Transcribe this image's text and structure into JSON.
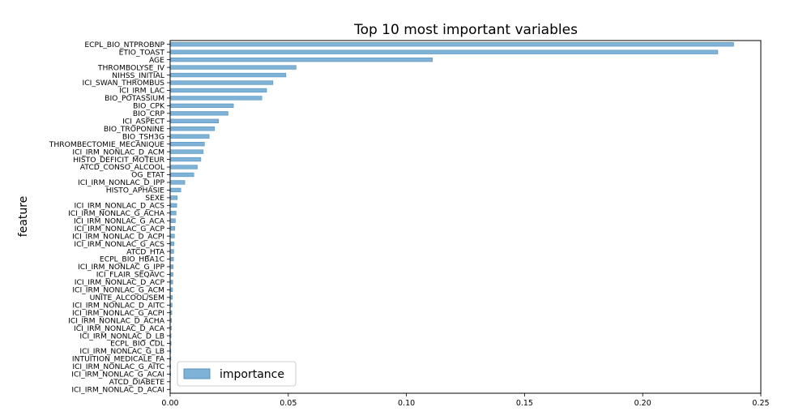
{
  "chart_data": {
    "type": "bar",
    "orientation": "horizontal",
    "title": "Top 10 most important variables",
    "xlabel": "",
    "ylabel": "feature",
    "xlim": [
      0,
      0.25
    ],
    "xticks": [
      "0.00",
      "0.05",
      "0.10",
      "0.15",
      "0.20",
      "0.25"
    ],
    "grid": false,
    "legend_position": "bottom-left",
    "bar_color": "#7eb2d6",
    "bar_edge_color": "#5a93be",
    "categories": [
      "ECPL_BIO_NTPROBNP",
      "ETIO_TOAST",
      "AGE",
      "THROMBOLYSE_IV",
      "NIHSS_INITIAL",
      "ICI_SWAN_THROMBUS",
      "ICI_IRM_LAC",
      "BIO_POTASSIUM",
      "BIO_CPK",
      "BIO_CRP",
      "ICI_ASPECT",
      "BIO_TROPONINE",
      "BIO_TSH3G",
      "THROMBECTOMIE_MECANIQUE",
      "ICI_IRM_NONLAC_D_ACM",
      "HISTO_DEFICIT_MOTEUR",
      "ATCD_CONSO_ALCOOL",
      "OG_ETAT",
      "ICI_IRM_NONLAC_D_IPP",
      "HISTO_APHASIE",
      "SEXE",
      "ICI_IRM_NONLAC_D_ACS",
      "ICI_IRM_NONLAC_G_ACHA",
      "ICI_IRM_NONLAC_G_ACA",
      "ICI_IRM_NONLAC_G_ACP",
      "ICI_IRM_NONLAC_D_ACPI",
      "ICI_IRM_NONLAC_G_ACS",
      "ATCD_HTA",
      "ECPL_BIO_HBA1C",
      "ICI_IRM_NONLAC_G_IPP",
      "ICI_FLAIR_SEQAVC",
      "ICI_IRM_NONLAC_D_ACP",
      "ICI_IRM_NONLAC_G_ACM",
      "UNITE_ALCOOL/SEM",
      "ICI_IRM_NONLAC_D_AITC",
      "ICI_IRM_NONLAC_G_ACPI",
      "ICI_IRM_NONLAC_D_ACHA",
      "ICI_IRM_NONLAC_D_ACA",
      "ICI_IRM_NONLAC_D_LB",
      "ECPL_BIO_CDL",
      "ICI_IRM_NONLAC_G_LB",
      "INTUITION_MEDICALE_FA",
      "ICI_IRM_NONLAC_G_AITC",
      "ICI_IRM_NONLAC_G_ACAI",
      "ATCD_DIABETE",
      "ICI_IRM_NONLAC_D_ACAI"
    ],
    "series": [
      {
        "name": "importance",
        "values": [
          0.2385,
          0.2318,
          0.111,
          0.0533,
          0.049,
          0.0435,
          0.0408,
          0.0388,
          0.0268,
          0.0245,
          0.0205,
          0.0188,
          0.0165,
          0.0145,
          0.014,
          0.013,
          0.0115,
          0.01,
          0.0062,
          0.0045,
          0.003,
          0.0028,
          0.0025,
          0.0022,
          0.002,
          0.0018,
          0.0016,
          0.0015,
          0.0014,
          0.0013,
          0.0012,
          0.0011,
          0.001,
          0.0009,
          0.0008,
          0.0007,
          0.0006,
          0.0005,
          0.0004,
          0.0004,
          0.0003,
          0.0003,
          0.0002,
          0.0002,
          0.0001,
          0.0001
        ]
      }
    ]
  }
}
